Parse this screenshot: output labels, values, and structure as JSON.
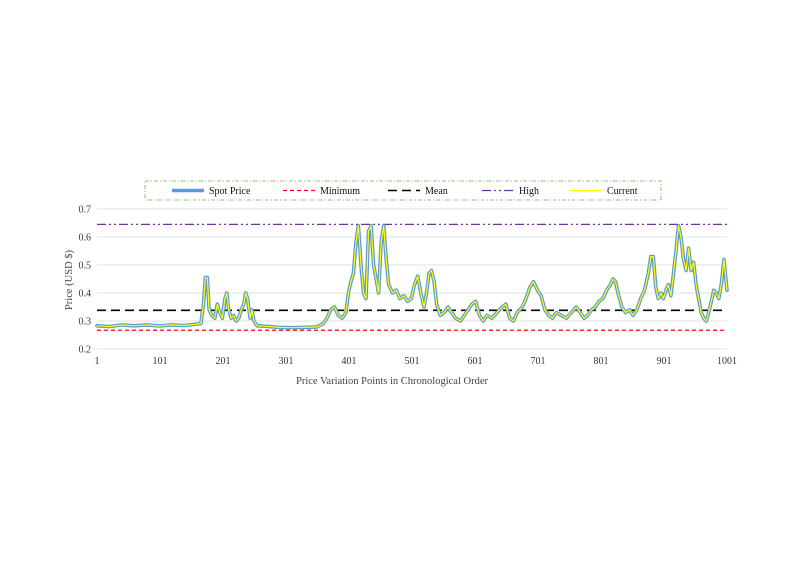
{
  "chart_data": {
    "type": "line",
    "title": "",
    "xlabel": "Price Variation Points in Chronological Order",
    "ylabel": "Price (USD $)",
    "xlim": [
      1,
      1001
    ],
    "ylim": [
      0.2,
      0.7
    ],
    "x_ticks": [
      1,
      101,
      201,
      301,
      401,
      501,
      601,
      701,
      801,
      901,
      1001
    ],
    "y_ticks": [
      "0.2",
      "0.3",
      "0.4",
      "0.5",
      "0.6",
      "0.7"
    ],
    "grid": "horizontal",
    "legend_position": "top",
    "series": [
      {
        "name": "Spot Price",
        "color": "#5b9bd5",
        "style": "solid-thick",
        "points": [
          [
            1,
            0.283
          ],
          [
            20,
            0.28
          ],
          [
            40,
            0.286
          ],
          [
            60,
            0.283
          ],
          [
            80,
            0.286
          ],
          [
            100,
            0.282
          ],
          [
            120,
            0.286
          ],
          [
            140,
            0.284
          ],
          [
            160,
            0.289
          ],
          [
            166,
            0.291
          ],
          [
            170,
            0.36
          ],
          [
            173,
            0.455
          ],
          [
            176,
            0.455
          ],
          [
            179,
            0.34
          ],
          [
            183,
            0.32
          ],
          [
            188,
            0.31
          ],
          [
            192,
            0.36
          ],
          [
            196,
            0.33
          ],
          [
            200,
            0.31
          ],
          [
            204,
            0.38
          ],
          [
            207,
            0.4
          ],
          [
            210,
            0.34
          ],
          [
            214,
            0.31
          ],
          [
            218,
            0.32
          ],
          [
            222,
            0.3
          ],
          [
            226,
            0.31
          ],
          [
            230,
            0.34
          ],
          [
            234,
            0.36
          ],
          [
            237,
            0.4
          ],
          [
            240,
            0.38
          ],
          [
            244,
            0.31
          ],
          [
            247,
            0.34
          ],
          [
            250,
            0.3
          ],
          [
            255,
            0.283
          ],
          [
            270,
            0.281
          ],
          [
            290,
            0.277
          ],
          [
            310,
            0.276
          ],
          [
            330,
            0.277
          ],
          [
            350,
            0.279
          ],
          [
            360,
            0.29
          ],
          [
            366,
            0.31
          ],
          [
            372,
            0.34
          ],
          [
            378,
            0.35
          ],
          [
            384,
            0.32
          ],
          [
            390,
            0.31
          ],
          [
            396,
            0.33
          ],
          [
            400,
            0.4
          ],
          [
            404,
            0.44
          ],
          [
            408,
            0.47
          ],
          [
            412,
            0.58
          ],
          [
            416,
            0.64
          ],
          [
            420,
            0.5
          ],
          [
            424,
            0.4
          ],
          [
            428,
            0.38
          ],
          [
            432,
            0.62
          ],
          [
            436,
            0.64
          ],
          [
            440,
            0.5
          ],
          [
            444,
            0.45
          ],
          [
            448,
            0.4
          ],
          [
            452,
            0.58
          ],
          [
            456,
            0.64
          ],
          [
            460,
            0.52
          ],
          [
            464,
            0.43
          ],
          [
            470,
            0.4
          ],
          [
            476,
            0.41
          ],
          [
            482,
            0.38
          ],
          [
            488,
            0.39
          ],
          [
            494,
            0.37
          ],
          [
            500,
            0.38
          ],
          [
            505,
            0.43
          ],
          [
            510,
            0.46
          ],
          [
            515,
            0.4
          ],
          [
            520,
            0.35
          ],
          [
            524,
            0.4
          ],
          [
            528,
            0.47
          ],
          [
            532,
            0.48
          ],
          [
            536,
            0.44
          ],
          [
            540,
            0.36
          ],
          [
            546,
            0.32
          ],
          [
            552,
            0.33
          ],
          [
            558,
            0.35
          ],
          [
            564,
            0.33
          ],
          [
            570,
            0.31
          ],
          [
            578,
            0.3
          ],
          [
            584,
            0.32
          ],
          [
            590,
            0.34
          ],
          [
            596,
            0.36
          ],
          [
            602,
            0.37
          ],
          [
            608,
            0.32
          ],
          [
            614,
            0.3
          ],
          [
            620,
            0.32
          ],
          [
            628,
            0.31
          ],
          [
            636,
            0.33
          ],
          [
            644,
            0.35
          ],
          [
            650,
            0.36
          ],
          [
            656,
            0.31
          ],
          [
            662,
            0.3
          ],
          [
            668,
            0.33
          ],
          [
            676,
            0.35
          ],
          [
            682,
            0.38
          ],
          [
            688,
            0.42
          ],
          [
            694,
            0.44
          ],
          [
            700,
            0.41
          ],
          [
            706,
            0.39
          ],
          [
            712,
            0.34
          ],
          [
            718,
            0.32
          ],
          [
            724,
            0.31
          ],
          [
            730,
            0.33
          ],
          [
            738,
            0.32
          ],
          [
            746,
            0.31
          ],
          [
            754,
            0.33
          ],
          [
            762,
            0.35
          ],
          [
            768,
            0.33
          ],
          [
            774,
            0.31
          ],
          [
            780,
            0.32
          ],
          [
            786,
            0.34
          ],
          [
            792,
            0.35
          ],
          [
            798,
            0.37
          ],
          [
            804,
            0.38
          ],
          [
            810,
            0.41
          ],
          [
            816,
            0.43
          ],
          [
            820,
            0.45
          ],
          [
            824,
            0.44
          ],
          [
            828,
            0.4
          ],
          [
            834,
            0.35
          ],
          [
            840,
            0.33
          ],
          [
            846,
            0.34
          ],
          [
            852,
            0.32
          ],
          [
            858,
            0.34
          ],
          [
            864,
            0.38
          ],
          [
            870,
            0.41
          ],
          [
            876,
            0.47
          ],
          [
            880,
            0.53
          ],
          [
            884,
            0.53
          ],
          [
            888,
            0.42
          ],
          [
            892,
            0.38
          ],
          [
            896,
            0.4
          ],
          [
            900,
            0.38
          ],
          [
            904,
            0.41
          ],
          [
            908,
            0.43
          ],
          [
            912,
            0.39
          ],
          [
            916,
            0.47
          ],
          [
            920,
            0.55
          ],
          [
            924,
            0.64
          ],
          [
            928,
            0.6
          ],
          [
            932,
            0.52
          ],
          [
            936,
            0.48
          ],
          [
            940,
            0.56
          ],
          [
            944,
            0.48
          ],
          [
            948,
            0.51
          ],
          [
            952,
            0.43
          ],
          [
            956,
            0.38
          ],
          [
            960,
            0.33
          ],
          [
            964,
            0.31
          ],
          [
            968,
            0.3
          ],
          [
            972,
            0.33
          ],
          [
            976,
            0.37
          ],
          [
            980,
            0.41
          ],
          [
            984,
            0.4
          ],
          [
            988,
            0.38
          ],
          [
            992,
            0.43
          ],
          [
            996,
            0.52
          ],
          [
            1001,
            0.41
          ]
        ]
      },
      {
        "name": "Minimum",
        "color": "#ff0000",
        "style": "dashed",
        "value": 0.267
      },
      {
        "name": "Mean",
        "color": "#000000",
        "style": "long-dashed",
        "value": 0.338
      },
      {
        "name": "High",
        "color": "#7030a0",
        "style": "dash-dot-dot",
        "value": 0.645
      },
      {
        "name": "Current",
        "color": "#ffff00",
        "style": "solid-thin",
        "same_as": "Spot Price"
      }
    ]
  }
}
